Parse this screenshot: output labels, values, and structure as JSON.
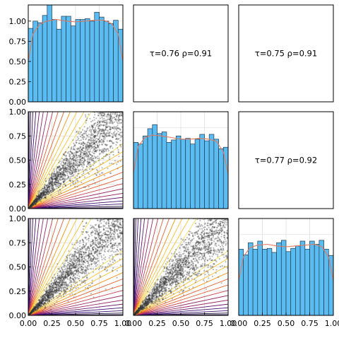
{
  "chart_data": {
    "type": "pairplot",
    "variables": 3,
    "axis_range": [
      0,
      1
    ],
    "ticks": [
      0.0,
      0.25,
      0.5,
      0.75,
      1.0
    ],
    "tick_labels": [
      "0.00",
      "0.25",
      "0.50",
      "0.75",
      "1.00"
    ],
    "grid": true,
    "histogram": {
      "bins": 20,
      "ylim": [
        0,
        1.2
      ],
      "y_ticks": [
        0.0,
        0.25,
        0.5,
        0.75,
        1.0
      ],
      "y_tick_labels": [
        "0.00",
        "0.25",
        "0.50",
        "0.75",
        "1.00"
      ],
      "bar_color": "#5bbcf2",
      "kde_color": "#e07a5f"
    },
    "diagonal": [
      {
        "var": 1,
        "densities": [
          0.91,
          1.0,
          0.98,
          1.07,
          1.22,
          1.02,
          0.9,
          1.06,
          1.06,
          0.94,
          1.02,
          1.02,
          1.03,
          1.0,
          1.11,
          1.05,
          1.0,
          0.97,
          1.01,
          0.9
        ],
        "kde": [
          [
            0.0,
            0.5
          ],
          [
            0.05,
            0.84
          ],
          [
            0.12,
            0.96
          ],
          [
            0.2,
            1.0
          ],
          [
            0.3,
            1.02
          ],
          [
            0.4,
            1.0
          ],
          [
            0.5,
            0.99
          ],
          [
            0.6,
            1.0
          ],
          [
            0.7,
            1.01
          ],
          [
            0.8,
            1.01
          ],
          [
            0.88,
            0.97
          ],
          [
            0.95,
            0.84
          ],
          [
            1.0,
            0.5
          ]
        ]
      },
      {
        "var": 2,
        "densities": [
          0.82,
          0.8,
          0.9,
          0.99,
          1.04,
          0.93,
          0.95,
          0.82,
          0.85,
          0.9,
          0.86,
          0.87,
          0.8,
          0.86,
          0.92,
          0.84,
          0.92,
          0.86,
          0.74,
          0.76
        ],
        "kde": [
          [
            0.0,
            0.45
          ],
          [
            0.05,
            0.77
          ],
          [
            0.12,
            0.88
          ],
          [
            0.2,
            0.91
          ],
          [
            0.3,
            0.9
          ],
          [
            0.4,
            0.88
          ],
          [
            0.5,
            0.86
          ],
          [
            0.6,
            0.86
          ],
          [
            0.7,
            0.87
          ],
          [
            0.8,
            0.86
          ],
          [
            0.88,
            0.83
          ],
          [
            0.95,
            0.7
          ],
          [
            1.0,
            0.43
          ]
        ]
      },
      {
        "var": 3,
        "densities": [
          0.82,
          0.75,
          0.9,
          0.82,
          0.92,
          0.82,
          0.83,
          0.78,
          0.9,
          0.93,
          0.79,
          0.83,
          0.86,
          0.92,
          0.82,
          0.92,
          0.88,
          0.93,
          0.82,
          0.74
        ],
        "kde": [
          [
            0.0,
            0.43
          ],
          [
            0.05,
            0.73
          ],
          [
            0.12,
            0.84
          ],
          [
            0.2,
            0.87
          ],
          [
            0.3,
            0.88
          ],
          [
            0.4,
            0.86
          ],
          [
            0.5,
            0.85
          ],
          [
            0.6,
            0.86
          ],
          [
            0.7,
            0.87
          ],
          [
            0.8,
            0.88
          ],
          [
            0.88,
            0.85
          ],
          [
            0.95,
            0.72
          ],
          [
            1.0,
            0.43
          ]
        ]
      }
    ],
    "upper": [
      {
        "row": 1,
        "col": 2,
        "tau": "0.76",
        "rho": "0.91",
        "label": "τ=0.76  ρ=0.91"
      },
      {
        "row": 1,
        "col": 3,
        "tau": "0.75",
        "rho": "0.91",
        "label": "τ=0.75  ρ=0.91"
      },
      {
        "row": 2,
        "col": 3,
        "tau": "0.77",
        "rho": "0.92",
        "label": "τ=0.77  ρ=0.92"
      }
    ],
    "lower": [
      {
        "row": 2,
        "col": 1,
        "tau": 0.76,
        "points": 2000
      },
      {
        "row": 3,
        "col": 1,
        "tau": 0.75,
        "points": 2000
      },
      {
        "row": 3,
        "col": 2,
        "tau": 0.77,
        "points": 2000
      }
    ],
    "scatter_color": "#333333",
    "contour": {
      "type": "copula level-set rays",
      "lines_per_side": 14,
      "colormap": [
        "#1a0836",
        "#3b0f70",
        "#6a176e",
        "#9b2964",
        "#c73e4c",
        "#e85d2f",
        "#f98e09",
        "#fbc131",
        "#f5e05c"
      ]
    }
  }
}
